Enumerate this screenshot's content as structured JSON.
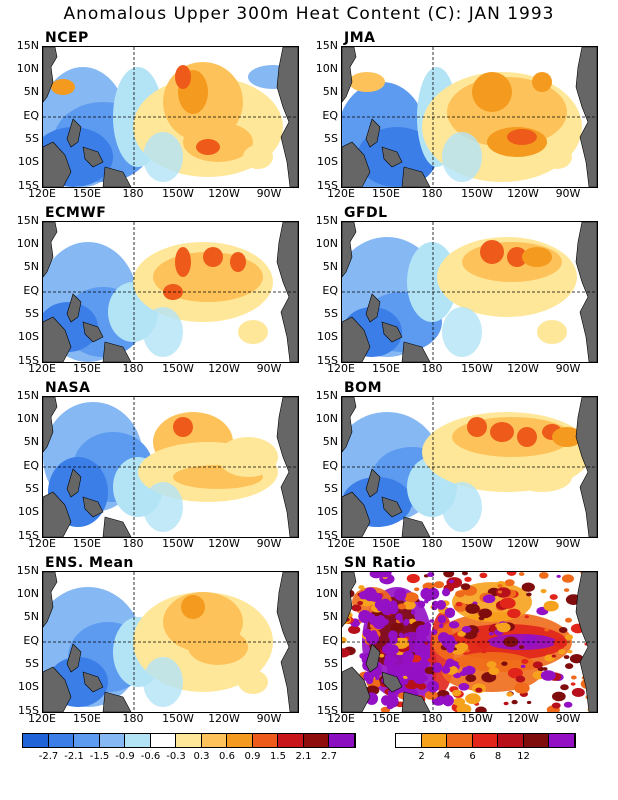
{
  "title": "Anomalous Upper 300m Heat Content (C): JAN 1993",
  "y_ticks": [
    "15N",
    "10N",
    "5N",
    "EQ",
    "5S",
    "10S",
    "15S"
  ],
  "x_ticks": [
    "120E",
    "150E",
    "180",
    "150W",
    "120W",
    "90W"
  ],
  "panels": [
    {
      "name": "NCEP"
    },
    {
      "name": "JMA"
    },
    {
      "name": "ECMWF"
    },
    {
      "name": "GFDL"
    },
    {
      "name": "NASA"
    },
    {
      "name": "BOM"
    },
    {
      "name": "ENS. Mean"
    },
    {
      "name": "SN Ratio"
    }
  ],
  "colorbar_anom": {
    "colors": [
      "#1f63d9",
      "#3b7ee8",
      "#5d9bf0",
      "#86b8f3",
      "#b3e4f6",
      "#ffffff",
      "#ffe79a",
      "#fdc35a",
      "#f49a1e",
      "#ee5a1a",
      "#c8141b",
      "#8e0e0e",
      "#8b0fc1"
    ],
    "labels": [
      "-2.7",
      "-2.1",
      "-1.5",
      "-0.9",
      "-0.6",
      "-0.3",
      "0.3",
      "0.6",
      "0.9",
      "1.5",
      "2.1",
      "2.7"
    ]
  },
  "colorbar_sn": {
    "colors": [
      "#ffffff",
      "#f7a21c",
      "#ef6b1b",
      "#e1251b",
      "#b7101a",
      "#7f0d0d",
      "#9410c5"
    ],
    "labels": [
      "2",
      "4",
      "6",
      "8",
      "12"
    ]
  },
  "colors": {
    "land": "#666666"
  }
}
